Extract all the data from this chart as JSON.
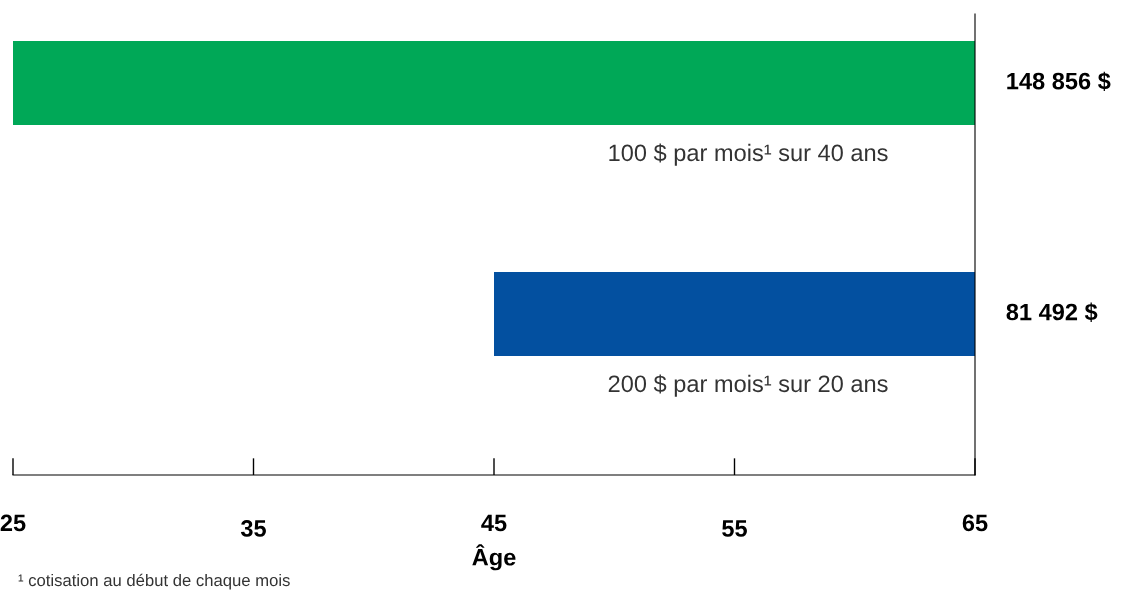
{
  "chart_data": {
    "type": "bar",
    "orientation": "horizontal",
    "categories": [
      "100 $ par mois¹ sur 40 ans",
      "200 $ par mois¹ sur 20 ans"
    ],
    "base": [
      25,
      45
    ],
    "values": [
      40,
      20
    ],
    "colors": [
      "#00a857",
      "#0350a0"
    ],
    "xlim": [
      25,
      65
    ],
    "xticks": [
      25,
      35,
      45,
      55,
      65
    ],
    "xlabel": "Âge",
    "grid": false,
    "legend": false,
    "annotations": [
      "148 856 $",
      "81 492 $",
      "¹ cotisation au début de chaque mois"
    ]
  }
}
